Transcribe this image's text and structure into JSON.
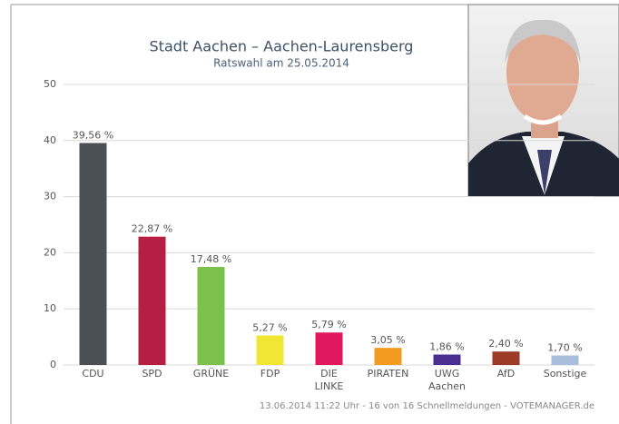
{
  "chart_data": {
    "type": "bar",
    "title": "Stadt Aachen – Aachen-Laurensberg",
    "subtitle": "Ratswahl am 25.05.2014",
    "categories": [
      "CDU",
      "SPD",
      "GRÜNE",
      "FDP",
      "DIE LINKE",
      "PIRATEN",
      "UWG Aachen",
      "AfD",
      "Sonstige"
    ],
    "values": [
      39.56,
      22.87,
      17.48,
      5.27,
      5.79,
      3.05,
      1.86,
      2.4,
      1.7
    ],
    "value_labels": [
      "39,56 %",
      "22,87 %",
      "17,48 %",
      "5,27 %",
      "5,79 %",
      "3,05 %",
      "1,86 %",
      "2,40 %",
      "1,70 %"
    ],
    "colors": [
      "#4b5055",
      "#b61f43",
      "#7cc14c",
      "#f1e634",
      "#e2185f",
      "#f39b20",
      "#4b2f90",
      "#9d3a28",
      "#a9bddd"
    ],
    "ylim": [
      0,
      50
    ],
    "yticks": [
      0,
      10,
      20,
      30,
      40,
      50
    ],
    "grid": true,
    "footer": "13.06.2014 11:22 Uhr - 16 von 16 Schnellmeldungen - VOTEMANAGER.de"
  }
}
